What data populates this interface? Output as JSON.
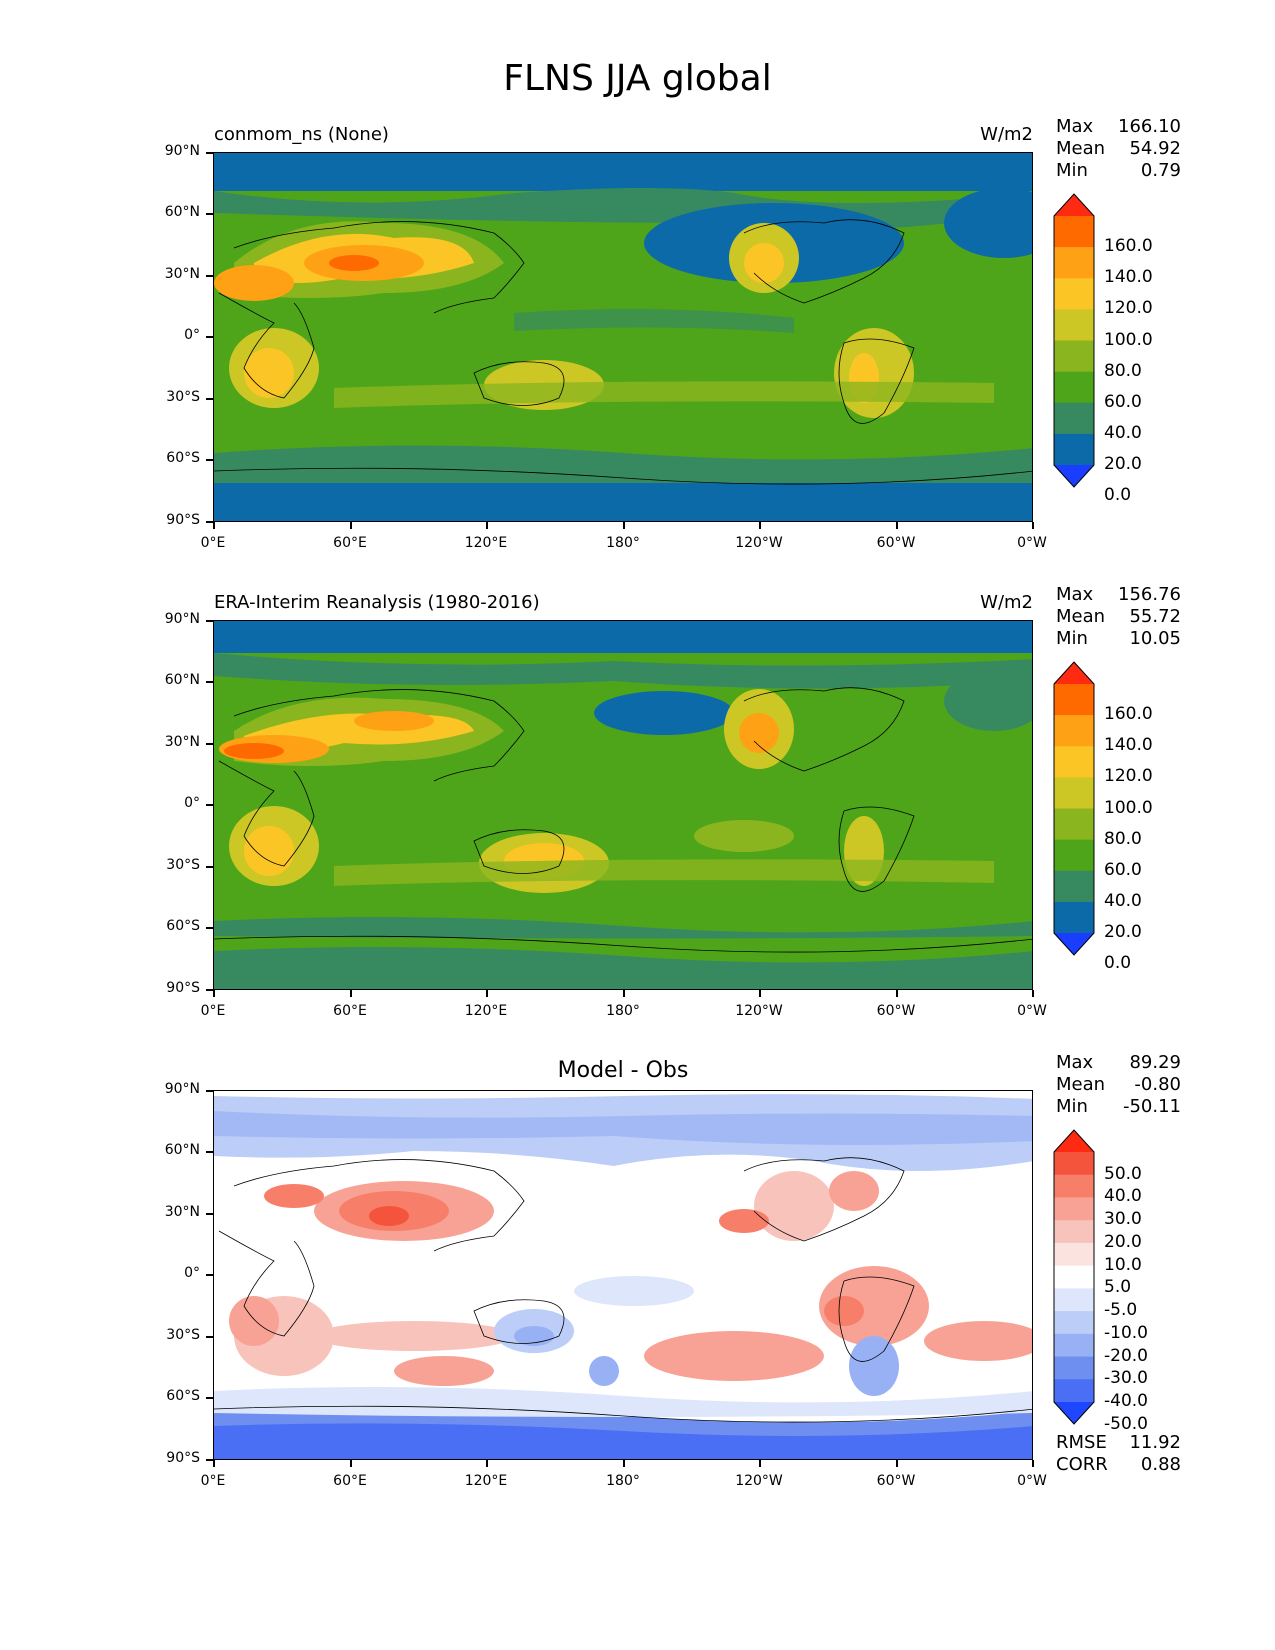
{
  "figure": {
    "title": "FLNS JJA global"
  },
  "axis": {
    "lat_labels": [
      "90°N",
      "60°N",
      "30°N",
      "0°",
      "30°S",
      "60°S",
      "90°S"
    ],
    "lon_labels": [
      "0°E",
      "60°E",
      "120°E",
      "180°",
      "120°W",
      "60°W",
      "0°W"
    ]
  },
  "panels": [
    {
      "title_left": "conmom_ns (None)",
      "units": "W/m2",
      "stats": [
        {
          "label": "Max",
          "value": "166.10"
        },
        {
          "label": "Mean",
          "value": "54.92"
        },
        {
          "label": "Min",
          "value": "0.79"
        }
      ],
      "colorbar": {
        "labels": [
          "160.0",
          "140.0",
          "120.0",
          "100.0",
          "80.0",
          "60.0",
          "40.0",
          "20.0",
          "0.0"
        ],
        "colors": [
          "#ff2a12",
          "#ff6a00",
          "#ffa114",
          "#fbc625",
          "#cdc726",
          "#8bb51e",
          "#4fa51a",
          "#378a60",
          "#0d6aa8",
          "#1a3eff"
        ]
      }
    },
    {
      "title_left": "ERA-Interim Reanalysis (1980-2016)",
      "units": "W/m2",
      "stats": [
        {
          "label": "Max",
          "value": "156.76"
        },
        {
          "label": "Mean",
          "value": "55.72"
        },
        {
          "label": "Min",
          "value": "10.05"
        }
      ],
      "colorbar": {
        "labels": [
          "160.0",
          "140.0",
          "120.0",
          "100.0",
          "80.0",
          "60.0",
          "40.0",
          "20.0",
          "0.0"
        ],
        "colors": [
          "#ff2a12",
          "#ff6a00",
          "#ffa114",
          "#fbc625",
          "#cdc726",
          "#8bb51e",
          "#4fa51a",
          "#378a60",
          "#0d6aa8",
          "#1a3eff"
        ]
      }
    },
    {
      "title_center": "Model - Obs",
      "stats": [
        {
          "label": "Max",
          "value": "89.29"
        },
        {
          "label": "Mean",
          "value": "-0.80"
        },
        {
          "label": "Min",
          "value": "-50.11"
        }
      ],
      "colorbar": {
        "labels": [
          "50.0",
          "40.0",
          "30.0",
          "20.0",
          "10.0",
          "5.0",
          "-5.0",
          "-10.0",
          "-20.0",
          "-30.0",
          "-40.0",
          "-50.0"
        ],
        "colors": [
          "#ff2a12",
          "#f5543c",
          "#f77f6a",
          "#f8a295",
          "#f8c3bb",
          "#fbe3df",
          "#ffffff",
          "#dde6fb",
          "#bccef8",
          "#97b1f4",
          "#6f8ff0",
          "#4a6ff5",
          "#1e47ff"
        ]
      },
      "rmse": [
        {
          "label": "RMSE",
          "value": "11.92"
        },
        {
          "label": "CORR",
          "value": "0.88"
        }
      ]
    }
  ],
  "chart_data": [
    {
      "type": "heatmap",
      "title": "conmom_ns (None)",
      "variable": "FLNS",
      "season": "JJA",
      "units": "W/m2",
      "xlim": [
        0,
        360
      ],
      "ylim": [
        -90,
        90
      ],
      "max": 166.1,
      "mean": 54.92,
      "min": 0.79,
      "levels": [
        0,
        20,
        40,
        60,
        80,
        100,
        120,
        140,
        160
      ]
    },
    {
      "type": "heatmap",
      "title": "ERA-Interim Reanalysis (1980-2016)",
      "variable": "FLNS",
      "season": "JJA",
      "units": "W/m2",
      "xlim": [
        0,
        360
      ],
      "ylim": [
        -90,
        90
      ],
      "max": 156.76,
      "mean": 55.72,
      "min": 10.05,
      "levels": [
        0,
        20,
        40,
        60,
        80,
        100,
        120,
        140,
        160
      ]
    },
    {
      "type": "heatmap",
      "title": "Model - Obs",
      "variable": "FLNS",
      "season": "JJA",
      "xlim": [
        0,
        360
      ],
      "ylim": [
        -90,
        90
      ],
      "max": 89.29,
      "mean": -0.8,
      "min": -50.11,
      "rmse": 11.92,
      "corr": 0.88,
      "levels": [
        -50,
        -40,
        -30,
        -20,
        -10,
        -5,
        5,
        10,
        20,
        30,
        40,
        50
      ]
    }
  ]
}
